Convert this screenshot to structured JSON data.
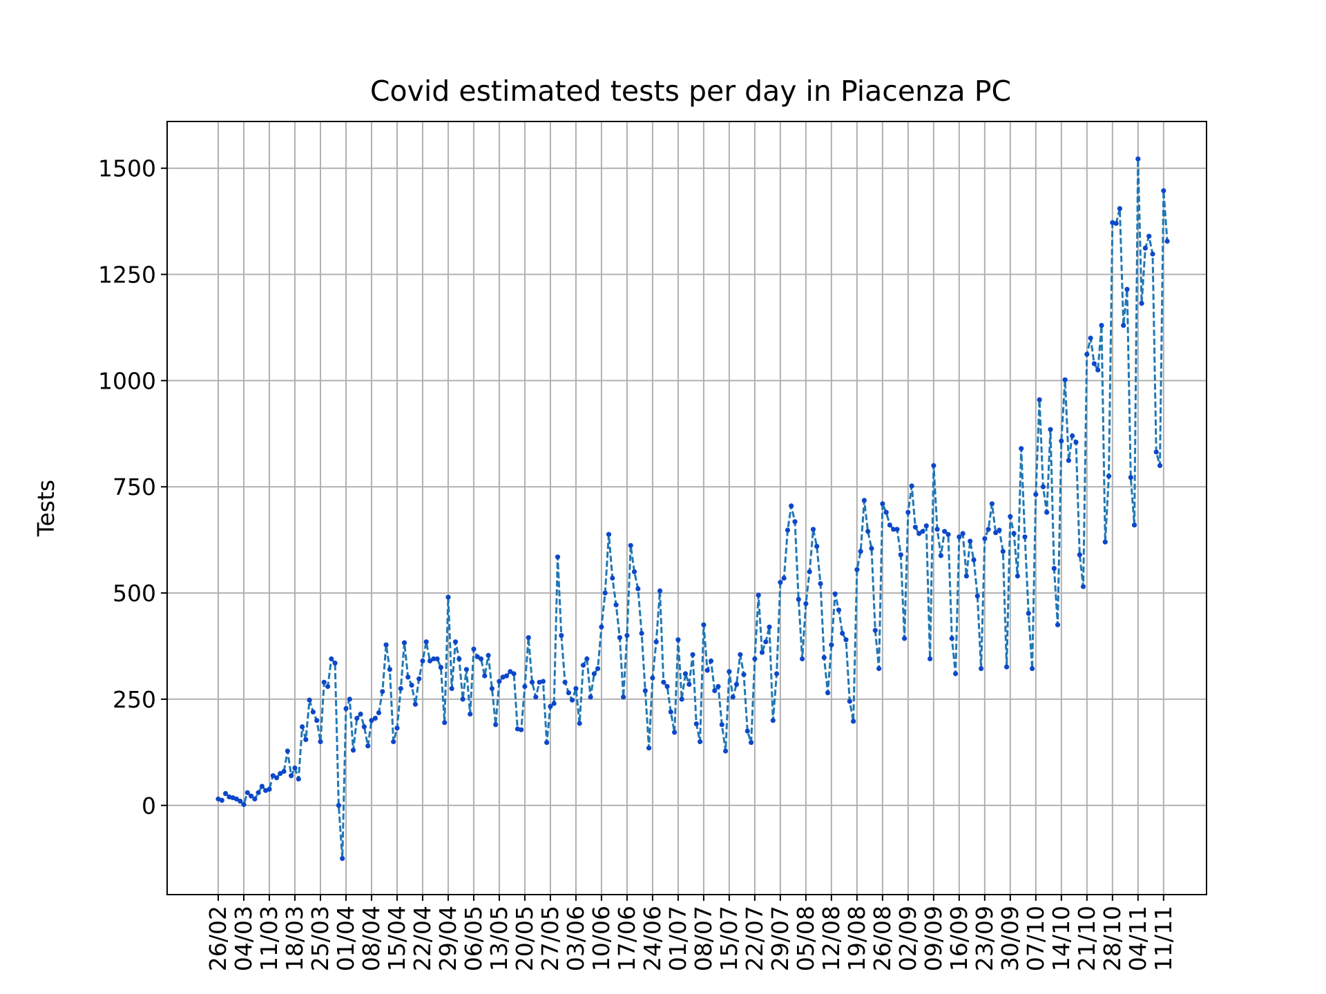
{
  "chart_data": {
    "type": "line",
    "title": "Covid estimated tests per day in Piacenza PC",
    "xlabel": "",
    "ylabel": "Tests",
    "ylim": [
      -210,
      1610
    ],
    "yticks": [
      0,
      250,
      500,
      750,
      1000,
      1250,
      1500
    ],
    "grid": true,
    "x_tick_labels": [
      "26/02",
      "04/03",
      "11/03",
      "18/03",
      "25/03",
      "01/04",
      "08/04",
      "15/04",
      "22/04",
      "29/04",
      "06/05",
      "13/05",
      "20/05",
      "27/05",
      "03/06",
      "10/06",
      "17/06",
      "24/06",
      "01/07",
      "08/07",
      "15/07",
      "22/07",
      "29/07",
      "05/08",
      "12/08",
      "19/08",
      "26/08",
      "02/09",
      "09/09",
      "16/09",
      "23/09",
      "30/09",
      "07/10",
      "14/10",
      "21/10",
      "28/10",
      "04/11",
      "11/11"
    ],
    "color": "#1f77b4",
    "marker_color": "#0d47c9",
    "start_label": "26/02",
    "values": [
      15,
      12,
      28,
      20,
      18,
      15,
      10,
      2,
      30,
      22,
      15,
      30,
      45,
      35,
      38,
      70,
      65,
      75,
      80,
      128,
      70,
      88,
      62,
      185,
      155,
      248,
      220,
      200,
      150,
      290,
      280,
      345,
      335,
      0,
      -125,
      228,
      250,
      130,
      205,
      215,
      185,
      140,
      200,
      205,
      218,
      268,
      378,
      320,
      150,
      182,
      275,
      383,
      302,
      283,
      238,
      298,
      340,
      385,
      340,
      345,
      345,
      325,
      195,
      490,
      275,
      385,
      345,
      250,
      320,
      215,
      368,
      350,
      345,
      305,
      353,
      275,
      190,
      292,
      302,
      305,
      315,
      310,
      180,
      178,
      280,
      395,
      290,
      255,
      290,
      292,
      148,
      233,
      240,
      585,
      400,
      290,
      265,
      248,
      275,
      193,
      330,
      345,
      255,
      310,
      322,
      420,
      500,
      638,
      535,
      472,
      395,
      255,
      400,
      612,
      550,
      510,
      405,
      270,
      135,
      300,
      385,
      505,
      290,
      280,
      220,
      172,
      390,
      250,
      310,
      285,
      355,
      192,
      150,
      425,
      318,
      340,
      270,
      280,
      190,
      128,
      315,
      255,
      285,
      355,
      308,
      175,
      148,
      345,
      495,
      360,
      385,
      420,
      200,
      310,
      525,
      535,
      648,
      705,
      668,
      485,
      345,
      475,
      550,
      650,
      610,
      522,
      348,
      265,
      378,
      498,
      460,
      405,
      390,
      245,
      198,
      555,
      598,
      718,
      645,
      605,
      412,
      322,
      710,
      690,
      660,
      650,
      650,
      590,
      393,
      690,
      752,
      655,
      640,
      645,
      658,
      345,
      800,
      650,
      588,
      645,
      638,
      393,
      310,
      632,
      640,
      540,
      622,
      578,
      493,
      322,
      628,
      650,
      710,
      642,
      648,
      598,
      326,
      680,
      640,
      540,
      840,
      632,
      452,
      322,
      732,
      955,
      750,
      690,
      885,
      558,
      425,
      858,
      1002,
      812,
      870,
      855,
      590,
      515,
      1062,
      1100,
      1040,
      1025,
      1130,
      620,
      775,
      1372,
      1370,
      1405,
      1130,
      1215,
      772,
      660,
      1522,
      1182,
      1312,
      1340,
      1298,
      832,
      800,
      1447,
      1328
    ]
  }
}
